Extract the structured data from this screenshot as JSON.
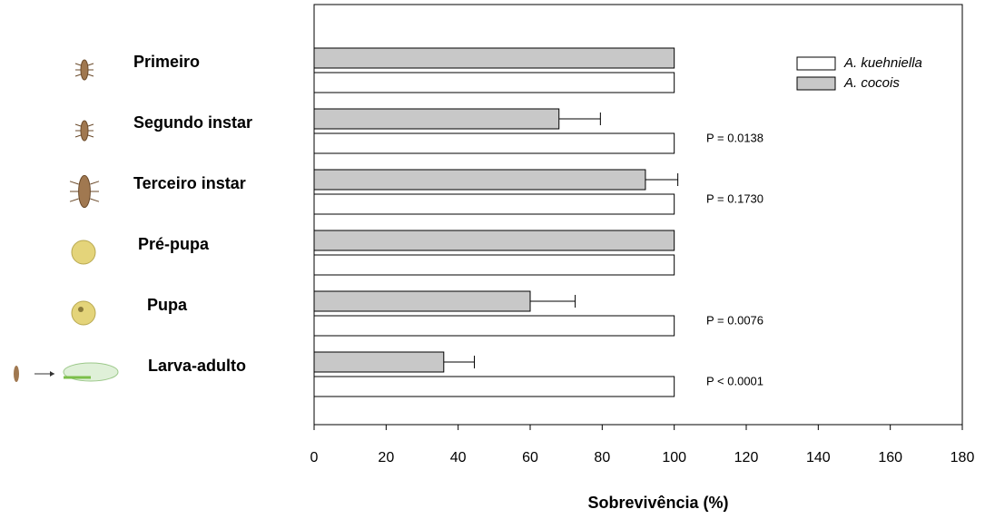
{
  "chart_data": {
    "type": "bar",
    "orientation": "horizontal",
    "categories": [
      "Primeiro",
      "Segundo instar",
      "Terceiro instar",
      "Pré-pupa",
      "Pupa",
      "Larva-adulto"
    ],
    "series": [
      {
        "name": "A. kuehniella",
        "color": "#ffffff",
        "values": [
          100,
          100,
          100,
          100,
          100,
          100
        ]
      },
      {
        "name": "A. cocois",
        "color": "#c8c8c8",
        "values": [
          100,
          68,
          92,
          100,
          60,
          36
        ],
        "errors": [
          null,
          11.5,
          9,
          null,
          12.5,
          8.5
        ]
      }
    ],
    "annotations": [
      null,
      "P = 0.0138",
      "P = 0.1730",
      null,
      "P = 0.0076",
      "P < 0.0001"
    ],
    "xlabel": "Sobrevivência (%)",
    "xlim": [
      0,
      180
    ],
    "xticks": [
      0,
      20,
      40,
      60,
      80,
      100,
      120,
      140,
      160,
      180
    ],
    "legend": "upper right"
  }
}
